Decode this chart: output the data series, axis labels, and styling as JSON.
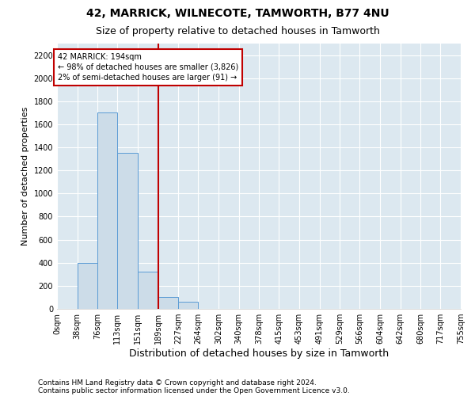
{
  "title": "42, MARRICK, WILNECOTE, TAMWORTH, B77 4NU",
  "subtitle": "Size of property relative to detached houses in Tamworth",
  "xlabel": "Distribution of detached houses by size in Tamworth",
  "ylabel": "Number of detached properties",
  "footnote1": "Contains HM Land Registry data © Crown copyright and database right 2024.",
  "footnote2": "Contains public sector information licensed under the Open Government Licence v3.0.",
  "bin_edges": [
    0,
    38,
    76,
    113,
    151,
    189,
    227,
    264,
    302,
    340,
    378,
    415,
    453,
    491,
    529,
    566,
    604,
    642,
    680,
    717,
    755
  ],
  "bar_heights": [
    0,
    400,
    1700,
    1350,
    320,
    100,
    60,
    0,
    0,
    0,
    0,
    0,
    0,
    0,
    0,
    0,
    0,
    0,
    0,
    0
  ],
  "bar_color": "#ccdce8",
  "bar_edge_color": "#5b9bd5",
  "vline_x": 189,
  "vline_color": "#c00000",
  "annotation_line1": "42 MARRICK: 194sqm",
  "annotation_line2": "← 98% of detached houses are smaller (3,826)",
  "annotation_line3": "2% of semi-detached houses are larger (91) →",
  "annotation_box_color": "#c00000",
  "ylim": [
    0,
    2300
  ],
  "yticks": [
    0,
    200,
    400,
    600,
    800,
    1000,
    1200,
    1400,
    1600,
    1800,
    2000,
    2200
  ],
  "background_color": "#dce8f0",
  "plot_bg_color": "#dce8f0",
  "grid_color": "#ffffff",
  "fig_bg_color": "#ffffff",
  "title_fontsize": 10,
  "subtitle_fontsize": 9,
  "ylabel_fontsize": 8,
  "xlabel_fontsize": 9,
  "tick_fontsize": 7,
  "footnote_fontsize": 6.5
}
